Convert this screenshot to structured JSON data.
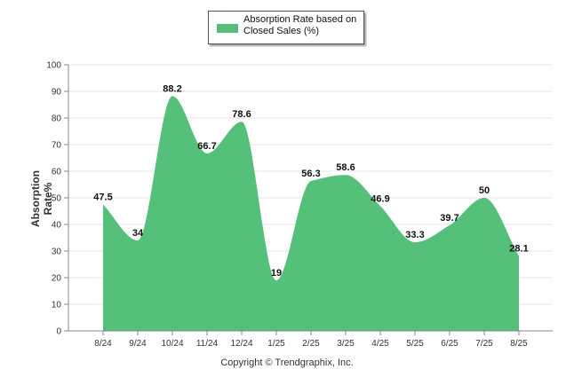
{
  "chart_data": {
    "type": "area",
    "categories": [
      "8/24",
      "9/24",
      "10/24",
      "11/24",
      "12/24",
      "1/25",
      "2/25",
      "3/25",
      "4/25",
      "5/25",
      "6/25",
      "7/25",
      "8/25"
    ],
    "series": [
      {
        "name": "Absorption Rate based on Closed Sales (%)",
        "values": [
          47.5,
          34,
          88.2,
          66.7,
          78.6,
          19,
          56.3,
          58.6,
          46.9,
          33.3,
          39.7,
          50,
          28.1
        ],
        "color": "#54c07a"
      }
    ],
    "ylabel": "Absorption Rate%",
    "ylim": [
      0,
      100
    ],
    "yticks": [
      0,
      10,
      20,
      30,
      40,
      50,
      60,
      70,
      80,
      90,
      100
    ],
    "grid": true,
    "legend_position": "top-center",
    "data_labels": true
  },
  "legend": {
    "line1": "Absorption Rate based on",
    "line2": "Closed Sales (%)"
  },
  "footer": {
    "copyright": "Copyright © Trendgraphix, Inc."
  }
}
